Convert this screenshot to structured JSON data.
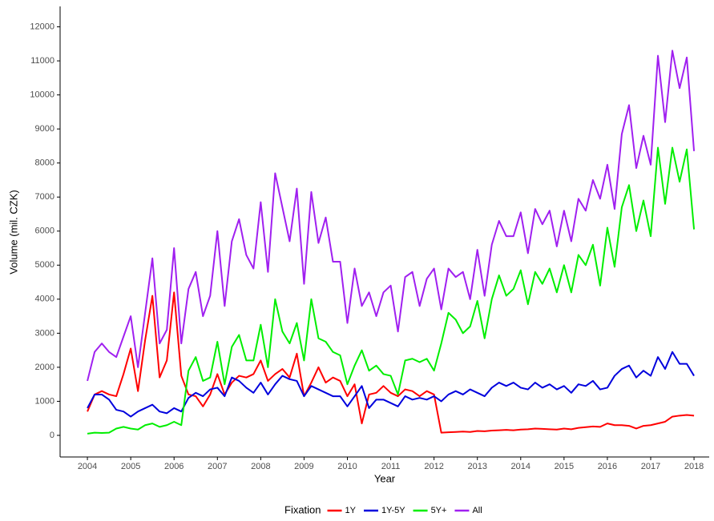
{
  "chart_data": {
    "type": "line",
    "x_label": "Year",
    "y_label": "Volume (mil. CZK)",
    "legend_title": "Fixation",
    "legend_position": "bottom",
    "grid": false,
    "xlim": [
      2003.37,
      2018.35
    ],
    "ylim": [
      -635,
      12600
    ],
    "xticks": [
      2004,
      2005,
      2006,
      2007,
      2008,
      2009,
      2010,
      2011,
      2012,
      2013,
      2014,
      2015,
      2016,
      2017,
      2018
    ],
    "yticks": [
      0,
      1000,
      2000,
      3000,
      4000,
      5000,
      6000,
      7000,
      8000,
      9000,
      10000,
      11000,
      12000
    ],
    "x": [
      2004,
      2004.167,
      2004.333,
      2004.5,
      2004.667,
      2004.833,
      2005,
      2005.167,
      2005.333,
      2005.5,
      2005.667,
      2005.833,
      2006,
      2006.167,
      2006.333,
      2006.5,
      2006.667,
      2006.833,
      2007,
      2007.167,
      2007.333,
      2007.5,
      2007.667,
      2007.833,
      2008,
      2008.167,
      2008.333,
      2008.5,
      2008.667,
      2008.833,
      2009,
      2009.167,
      2009.333,
      2009.5,
      2009.667,
      2009.833,
      2010,
      2010.167,
      2010.333,
      2010.5,
      2010.667,
      2010.833,
      2011,
      2011.167,
      2011.333,
      2011.5,
      2011.667,
      2011.833,
      2012,
      2012.167,
      2012.333,
      2012.5,
      2012.667,
      2012.833,
      2013,
      2013.167,
      2013.333,
      2013.5,
      2013.667,
      2013.833,
      2014,
      2014.167,
      2014.333,
      2014.5,
      2014.667,
      2014.833,
      2015,
      2015.167,
      2015.333,
      2015.5,
      2015.667,
      2015.833,
      2016,
      2016.167,
      2016.333,
      2016.5,
      2016.667,
      2016.833,
      2017,
      2017.167,
      2017.333,
      2017.5,
      2017.667,
      2017.833,
      2018
    ],
    "series": [
      {
        "name": "1Y",
        "color": "#ff0000",
        "values": [
          700,
          1200,
          1300,
          1200,
          1150,
          1800,
          2550,
          1300,
          2800,
          4100,
          1700,
          2200,
          4200,
          1750,
          1200,
          1150,
          850,
          1200,
          1800,
          1200,
          1550,
          1750,
          1700,
          1800,
          2200,
          1600,
          1800,
          1950,
          1700,
          2400,
          1150,
          1550,
          2000,
          1550,
          1700,
          1600,
          1150,
          1500,
          350,
          1200,
          1250,
          1450,
          1250,
          1150,
          1350,
          1300,
          1150,
          1300,
          1200,
          80,
          90,
          100,
          110,
          100,
          130,
          120,
          140,
          150,
          160,
          150,
          170,
          180,
          200,
          190,
          180,
          170,
          200,
          180,
          220,
          240,
          260,
          250,
          350,
          300,
          300,
          280,
          200,
          280,
          300,
          350,
          400,
          550,
          580,
          600,
          580
        ]
      },
      {
        "name": "1Y-5Y",
        "color": "#0000dd",
        "values": [
          800,
          1200,
          1200,
          1050,
          750,
          700,
          550,
          700,
          800,
          900,
          700,
          650,
          800,
          700,
          1100,
          1250,
          1150,
          1350,
          1400,
          1150,
          1700,
          1600,
          1400,
          1250,
          1550,
          1200,
          1500,
          1750,
          1650,
          1600,
          1150,
          1450,
          1350,
          1250,
          1150,
          1150,
          850,
          1150,
          1450,
          800,
          1050,
          1050,
          950,
          850,
          1150,
          1050,
          1100,
          1050,
          1150,
          1000,
          1200,
          1300,
          1200,
          1350,
          1250,
          1150,
          1400,
          1550,
          1450,
          1550,
          1400,
          1350,
          1550,
          1400,
          1500,
          1350,
          1450,
          1250,
          1500,
          1450,
          1600,
          1350,
          1400,
          1750,
          1950,
          2050,
          1700,
          1900,
          1750,
          2300,
          1950,
          2450,
          2100,
          2100,
          1750
        ]
      },
      {
        "name": "5Y+",
        "color": "#00ee00",
        "values": [
          50,
          80,
          70,
          80,
          200,
          250,
          200,
          170,
          300,
          350,
          250,
          300,
          400,
          300,
          1900,
          2300,
          1600,
          1700,
          2750,
          1500,
          2600,
          2950,
          2200,
          2200,
          3250,
          2000,
          4000,
          3050,
          2700,
          3300,
          2200,
          4000,
          2850,
          2750,
          2450,
          2350,
          1500,
          2050,
          2500,
          1900,
          2050,
          1800,
          1750,
          1200,
          2200,
          2250,
          2150,
          2250,
          1900,
          2700,
          3600,
          3400,
          3000,
          3200,
          3950,
          2850,
          4000,
          4700,
          4100,
          4300,
          4850,
          3850,
          4800,
          4450,
          4900,
          4200,
          5000,
          4200,
          5300,
          5000,
          5600,
          4400,
          6100,
          4950,
          6700,
          7350,
          6000,
          6900,
          5850,
          8450,
          6800,
          8450,
          7450,
          8400,
          6050
        ]
      },
      {
        "name": "All",
        "color": "#a020f0",
        "values": [
          1600,
          2450,
          2700,
          2450,
          2300,
          2900,
          3500,
          2000,
          3600,
          5200,
          2700,
          3100,
          5500,
          2700,
          4300,
          4800,
          3500,
          4100,
          6000,
          3800,
          5700,
          6350,
          5300,
          4900,
          6850,
          4800,
          7700,
          6700,
          5700,
          7250,
          4450,
          7150,
          5650,
          6400,
          5100,
          5100,
          3300,
          4900,
          3800,
          4200,
          3500,
          4200,
          4400,
          3050,
          4650,
          4800,
          3800,
          4600,
          4900,
          3700,
          4900,
          4650,
          4800,
          4000,
          5450,
          4100,
          5600,
          6300,
          5850,
          5850,
          6550,
          5350,
          6650,
          6200,
          6600,
          5550,
          6600,
          5700,
          6950,
          6600,
          7500,
          6950,
          7950,
          6650,
          8850,
          9700,
          7850,
          8800,
          7950,
          11150,
          9200,
          11300,
          10200,
          11100,
          8350
        ]
      }
    ]
  }
}
